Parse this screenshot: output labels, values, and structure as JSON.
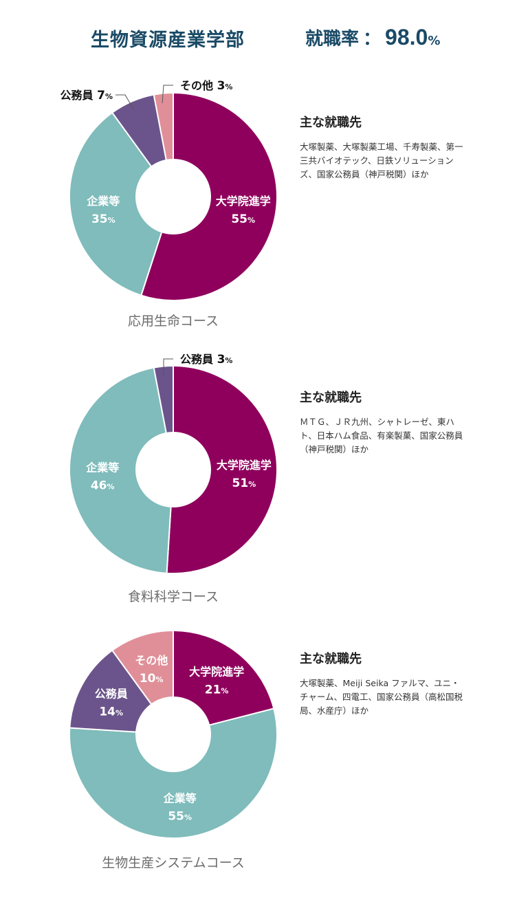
{
  "header": {
    "department": "生物資源産業学部",
    "rate_label": "就職率",
    "rate_colon": "：",
    "rate_value": "98.0",
    "rate_unit": "%"
  },
  "employers_title": "主な就職先",
  "colors": {
    "大学院進学": "#8f005d",
    "企業等": "#7fbcbb",
    "公務員": "#6b548b",
    "その他": "#e08f98"
  },
  "courses": [
    {
      "name": "応用生命コース",
      "employers": "大塚製薬、大塚製薬工場、千寿製薬、第一三共バイオテック、日鉄ソリューションズ、国家公務員（神戸税関）ほか"
    },
    {
      "name": "食料科学コース",
      "employers": "ＭＴＧ、ＪＲ九州、シャトレーゼ、東ハト、日本ハム食品、有楽製菓、国家公務員（神戸税関）ほか"
    },
    {
      "name": "生物生産システムコース",
      "employers": "大塚製薬、Meiji Seika ファルマ、ユニ・チャーム、四電工、国家公務員（高松国税局、水産庁）ほか"
    }
  ],
  "chart_data": [
    {
      "type": "pie",
      "title": "応用生命コース",
      "slices": [
        {
          "label": "大学院進学",
          "value": 55,
          "display": "55",
          "unit": "%"
        },
        {
          "label": "企業等",
          "value": 35,
          "display": "35",
          "unit": "%"
        },
        {
          "label": "公務員",
          "value": 7,
          "display": "7",
          "unit": "%"
        },
        {
          "label": "その他",
          "value": 3,
          "display": "3",
          "unit": "%"
        }
      ]
    },
    {
      "type": "pie",
      "title": "食料科学コース",
      "slices": [
        {
          "label": "大学院進学",
          "value": 51,
          "display": "51",
          "unit": "%"
        },
        {
          "label": "企業等",
          "value": 46,
          "display": "46",
          "unit": "%"
        },
        {
          "label": "公務員",
          "value": 3,
          "display": "3",
          "unit": "%"
        }
      ]
    },
    {
      "type": "pie",
      "title": "生物生産システムコース",
      "slices": [
        {
          "label": "大学院進学",
          "value": 21,
          "display": "21",
          "unit": "%"
        },
        {
          "label": "企業等",
          "value": 55,
          "display": "55",
          "unit": "%"
        },
        {
          "label": "公務員",
          "value": 14,
          "display": "14",
          "unit": "%"
        },
        {
          "label": "その他",
          "value": 10,
          "display": "10",
          "unit": "%"
        }
      ]
    }
  ]
}
